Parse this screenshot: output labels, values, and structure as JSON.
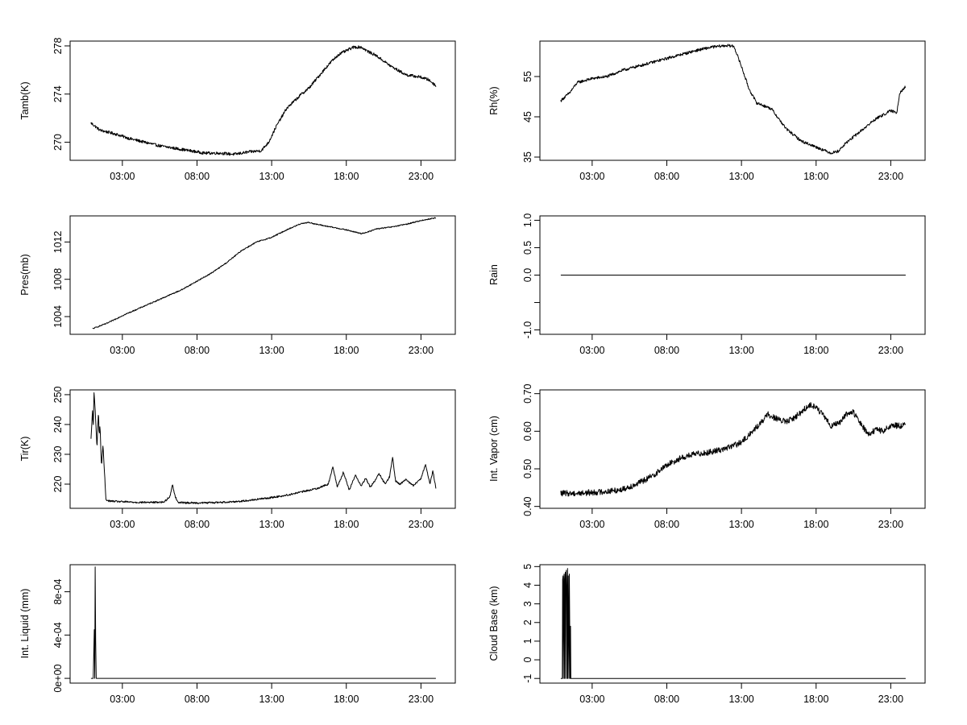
{
  "chart_data": [
    {
      "type": "line",
      "title": "",
      "xlabel": "",
      "ylabel": "Tamb(K)",
      "xticks": [
        {
          "x": 3,
          "label": "03:00"
        },
        {
          "x": 8,
          "label": "08:00"
        },
        {
          "x": 13,
          "label": "13:00"
        },
        {
          "x": 18,
          "label": "18:00"
        },
        {
          "x": 23,
          "label": "23:00"
        }
      ],
      "xlim": [
        -0.5,
        25.3
      ],
      "yticks": [
        {
          "v": 270,
          "label": "270"
        },
        {
          "v": 274,
          "label": "274"
        },
        {
          "v": 278,
          "label": "278"
        }
      ],
      "ylim": [
        268.5,
        278.4
      ],
      "noise": 0.12,
      "series": [
        {
          "name": "Tamb",
          "x": [
            0.9,
            1.5,
            2.5,
            3.5,
            4.5,
            5.5,
            6.5,
            7.5,
            8.5,
            9.5,
            10.5,
            11.5,
            12.3,
            12.8,
            13.3,
            14,
            15,
            15.5,
            16.5,
            17,
            17.5,
            18,
            18.5,
            19,
            19.5,
            20,
            21,
            22,
            23,
            23.5,
            24
          ],
          "y": [
            271.6,
            271.0,
            270.7,
            270.3,
            270.0,
            269.7,
            269.5,
            269.3,
            269.1,
            269.1,
            269.0,
            269.2,
            269.3,
            270.0,
            271.3,
            272.8,
            274.0,
            274.5,
            276.0,
            276.7,
            277.3,
            277.6,
            277.9,
            277.9,
            277.5,
            277.2,
            276.3,
            275.6,
            275.4,
            275.2,
            274.7
          ]
        }
      ]
    },
    {
      "type": "line",
      "title": "",
      "xlabel": "",
      "ylabel": "Rh(%)",
      "xticks": [
        {
          "x": 3,
          "label": "03:00"
        },
        {
          "x": 8,
          "label": "08:00"
        },
        {
          "x": 13,
          "label": "13:00"
        },
        {
          "x": 18,
          "label": "18:00"
        },
        {
          "x": 23,
          "label": "23:00"
        }
      ],
      "xlim": [
        -0.5,
        25.3
      ],
      "yticks": [
        {
          "v": 35,
          "label": "35"
        },
        {
          "v": 45,
          "label": "45"
        },
        {
          "v": 55,
          "label": "55"
        }
      ],
      "ylim": [
        34.2,
        63.8
      ],
      "noise": 0.35,
      "series": [
        {
          "name": "Rh",
          "x": [
            0.9,
            1.5,
            2,
            3,
            4,
            5,
            6,
            7,
            8,
            9,
            10,
            11,
            12,
            12.5,
            13,
            13.5,
            14,
            15,
            16,
            17,
            18,
            19,
            19.5,
            20,
            21,
            22,
            23,
            23.4,
            23.6,
            24
          ],
          "y": [
            49,
            51,
            53.5,
            54.5,
            55,
            56.5,
            57.5,
            58.5,
            59.5,
            60.5,
            61.5,
            62.3,
            62.7,
            62.5,
            57.5,
            52,
            48.5,
            47,
            42,
            39,
            37.5,
            36,
            36.5,
            38.5,
            41.5,
            44.5,
            46.5,
            46,
            51,
            52.5
          ]
        }
      ]
    },
    {
      "type": "line",
      "title": "",
      "xlabel": "",
      "ylabel": "Pres(mb)",
      "xticks": [
        {
          "x": 3,
          "label": "03:00"
        },
        {
          "x": 8,
          "label": "08:00"
        },
        {
          "x": 13,
          "label": "13:00"
        },
        {
          "x": 18,
          "label": "18:00"
        },
        {
          "x": 23,
          "label": "23:00"
        }
      ],
      "xlim": [
        -0.5,
        25.3
      ],
      "yticks": [
        {
          "v": 1004,
          "label": "1004"
        },
        {
          "v": 1008,
          "label": "1008"
        },
        {
          "v": 1012,
          "label": "1012"
        }
      ],
      "ylim": [
        1002.1,
        1014.8
      ],
      "noise": 0.06,
      "series": [
        {
          "name": "Pres",
          "x": [
            1,
            2,
            3,
            4,
            5,
            6,
            7,
            8,
            9,
            10,
            11,
            12,
            13,
            14,
            15,
            15.5,
            16,
            17,
            18,
            19,
            19.5,
            20,
            21,
            22,
            23,
            24
          ],
          "y": [
            1002.7,
            1003.3,
            1004.1,
            1004.8,
            1005.5,
            1006.2,
            1006.9,
            1007.8,
            1008.7,
            1009.8,
            1011.1,
            1012.0,
            1012.5,
            1013.3,
            1014.0,
            1014.1,
            1013.9,
            1013.6,
            1013.3,
            1012.9,
            1013.1,
            1013.4,
            1013.6,
            1013.9,
            1014.3,
            1014.6
          ]
        }
      ]
    },
    {
      "type": "line",
      "title": "",
      "xlabel": "",
      "ylabel": "Rain",
      "xticks": [
        {
          "x": 3,
          "label": "03:00"
        },
        {
          "x": 8,
          "label": "08:00"
        },
        {
          "x": 13,
          "label": "13:00"
        },
        {
          "x": 18,
          "label": "18:00"
        },
        {
          "x": 23,
          "label": "23:00"
        }
      ],
      "xlim": [
        -0.5,
        25.3
      ],
      "yticks": [
        {
          "v": -1.0,
          "label": "-1.0"
        },
        {
          "v": -0.5,
          "label": ""
        },
        {
          "v": 0.0,
          "label": "0.0"
        },
        {
          "v": 0.5,
          "label": "0.5"
        },
        {
          "v": 1.0,
          "label": "1.0"
        }
      ],
      "ylim": [
        -1.08,
        1.08
      ],
      "noise": 0,
      "series": [
        {
          "name": "Rain",
          "x": [
            0.9,
            24
          ],
          "y": [
            0,
            0
          ]
        }
      ]
    },
    {
      "type": "line",
      "title": "",
      "xlabel": "",
      "ylabel": "Tir(K)",
      "xticks": [
        {
          "x": 3,
          "label": "03:00"
        },
        {
          "x": 8,
          "label": "08:00"
        },
        {
          "x": 13,
          "label": "13:00"
        },
        {
          "x": 18,
          "label": "18:00"
        },
        {
          "x": 23,
          "label": "23:00"
        }
      ],
      "xlim": [
        -0.5,
        25.3
      ],
      "yticks": [
        {
          "v": 220,
          "label": "220"
        },
        {
          "v": 230,
          "label": "230"
        },
        {
          "v": 240,
          "label": "240"
        },
        {
          "v": 250,
          "label": "250"
        }
      ],
      "ylim": [
        211.9,
        251.6
      ],
      "noise": 0.3,
      "series": [
        {
          "name": "Tir",
          "x": [
            0.9,
            1.0,
            1.05,
            1.1,
            1.2,
            1.3,
            1.4,
            1.45,
            1.5,
            1.6,
            1.7,
            1.8,
            1.9,
            2.0,
            2.2,
            3,
            4,
            5,
            5.8,
            6.2,
            6.35,
            6.5,
            6.7,
            7,
            8,
            9,
            10,
            11,
            12,
            13,
            14,
            15,
            16,
            16.8,
            17.1,
            17.4,
            17.8,
            18.2,
            18.6,
            19,
            19.3,
            19.6,
            19.9,
            20.2,
            20.6,
            20.9,
            21.1,
            21.3,
            21.6,
            22,
            22.5,
            23,
            23.3,
            23.6,
            23.8,
            24
          ],
          "y": [
            235,
            245,
            239,
            251,
            243,
            232,
            245,
            236,
            240,
            226,
            233,
            224,
            215,
            214.5,
            214.3,
            214.1,
            213.9,
            213.9,
            214,
            216,
            220,
            216.5,
            214,
            213.8,
            213.7,
            213.8,
            214,
            214.3,
            214.9,
            215.5,
            216.3,
            217.4,
            218.5,
            220,
            226,
            219,
            224,
            218,
            223,
            219.5,
            222,
            219,
            221,
            223.5,
            220,
            222.5,
            229,
            221,
            220,
            221.5,
            219.5,
            222,
            226.5,
            220,
            224.5,
            218.5
          ]
        }
      ]
    },
    {
      "type": "line",
      "title": "",
      "xlabel": "",
      "ylabel": "Int. Vapor (cm)",
      "xticks": [
        {
          "x": 3,
          "label": "03:00"
        },
        {
          "x": 8,
          "label": "08:00"
        },
        {
          "x": 13,
          "label": "13:00"
        },
        {
          "x": 18,
          "label": "18:00"
        },
        {
          "x": 23,
          "label": "23:00"
        }
      ],
      "xlim": [
        -0.5,
        25.3
      ],
      "yticks": [
        {
          "v": 0.4,
          "label": "0.40"
        },
        {
          "v": 0.5,
          "label": "0.50"
        },
        {
          "v": 0.6,
          "label": "0.60"
        },
        {
          "v": 0.7,
          "label": "0.70"
        }
      ],
      "ylim": [
        0.395,
        0.71
      ],
      "noise": 0.008,
      "series": [
        {
          "name": "Int. Vapor",
          "x": [
            0.9,
            2,
            3,
            4,
            5,
            6,
            7,
            8,
            9,
            10,
            11,
            12,
            13,
            14,
            14.8,
            15.5,
            16,
            16.5,
            17,
            17.5,
            18,
            18.5,
            19,
            19.5,
            20,
            20.5,
            21,
            21.5,
            22,
            22.5,
            23,
            24
          ],
          "y": [
            0.435,
            0.435,
            0.437,
            0.44,
            0.445,
            0.46,
            0.48,
            0.51,
            0.53,
            0.54,
            0.545,
            0.555,
            0.57,
            0.61,
            0.645,
            0.63,
            0.625,
            0.635,
            0.65,
            0.67,
            0.665,
            0.64,
            0.615,
            0.62,
            0.645,
            0.65,
            0.62,
            0.59,
            0.605,
            0.6,
            0.615,
            0.615
          ]
        }
      ]
    },
    {
      "type": "line",
      "title": "",
      "xlabel": "",
      "ylabel": "Int. Liquid (mm)",
      "xticks": [
        {
          "x": 3,
          "label": "03:00"
        },
        {
          "x": 8,
          "label": "08:00"
        },
        {
          "x": 13,
          "label": "13:00"
        },
        {
          "x": 18,
          "label": "18:00"
        },
        {
          "x": 23,
          "label": "23:00"
        }
      ],
      "xlim": [
        -0.5,
        25.3
      ],
      "yticks": [
        {
          "v": 0,
          "label": "0e+00"
        },
        {
          "v": 0.0004,
          "label": "4e-04"
        },
        {
          "v": 0.0008,
          "label": "8e-04"
        }
      ],
      "ylim": [
        -4.4e-05,
        0.00105
      ],
      "noise": 0,
      "series": [
        {
          "name": "Int. Liquid",
          "x": [
            0.9,
            1.05,
            1.12,
            1.15,
            1.18,
            1.21,
            1.25,
            1.3,
            24
          ],
          "y": [
            0,
            0,
            0.00045,
            0,
            0.00103,
            0.00035,
            0,
            0,
            0
          ]
        }
      ]
    },
    {
      "type": "line",
      "title": "",
      "xlabel": "",
      "ylabel": "Cloud Base (km)",
      "xticks": [
        {
          "x": 3,
          "label": "03:00"
        },
        {
          "x": 8,
          "label": "08:00"
        },
        {
          "x": 13,
          "label": "13:00"
        },
        {
          "x": 18,
          "label": "18:00"
        },
        {
          "x": 23,
          "label": "23:00"
        }
      ],
      "xlim": [
        -0.5,
        25.3
      ],
      "yticks": [
        {
          "v": -1,
          "label": "-1"
        },
        {
          "v": 0,
          "label": "0"
        },
        {
          "v": 1,
          "label": "1"
        },
        {
          "v": 2,
          "label": "2"
        },
        {
          "v": 3,
          "label": "3"
        },
        {
          "v": 4,
          "label": "4"
        },
        {
          "v": 5,
          "label": "5"
        }
      ],
      "ylim": [
        -1.25,
        5.1
      ],
      "noise": 0,
      "series": [
        {
          "name": "Cloud Base",
          "x": [
            0.9,
            1.0,
            1.02,
            1.05,
            1.07,
            1.1,
            1.12,
            1.15,
            1.17,
            1.2,
            1.22,
            1.25,
            1.27,
            1.3,
            1.32,
            1.35,
            1.37,
            1.4,
            1.42,
            1.45,
            1.47,
            1.5,
            1.52,
            1.55,
            1.57,
            24
          ],
          "y": [
            -1,
            -1,
            4.3,
            4.5,
            -1,
            3.9,
            4.6,
            -1,
            4.2,
            4.7,
            -1,
            4.3,
            4.8,
            3.8,
            -1,
            4.9,
            -1,
            4.5,
            1.9,
            -1,
            4.6,
            1.2,
            -1,
            1.8,
            -1,
            -1
          ]
        }
      ]
    }
  ]
}
